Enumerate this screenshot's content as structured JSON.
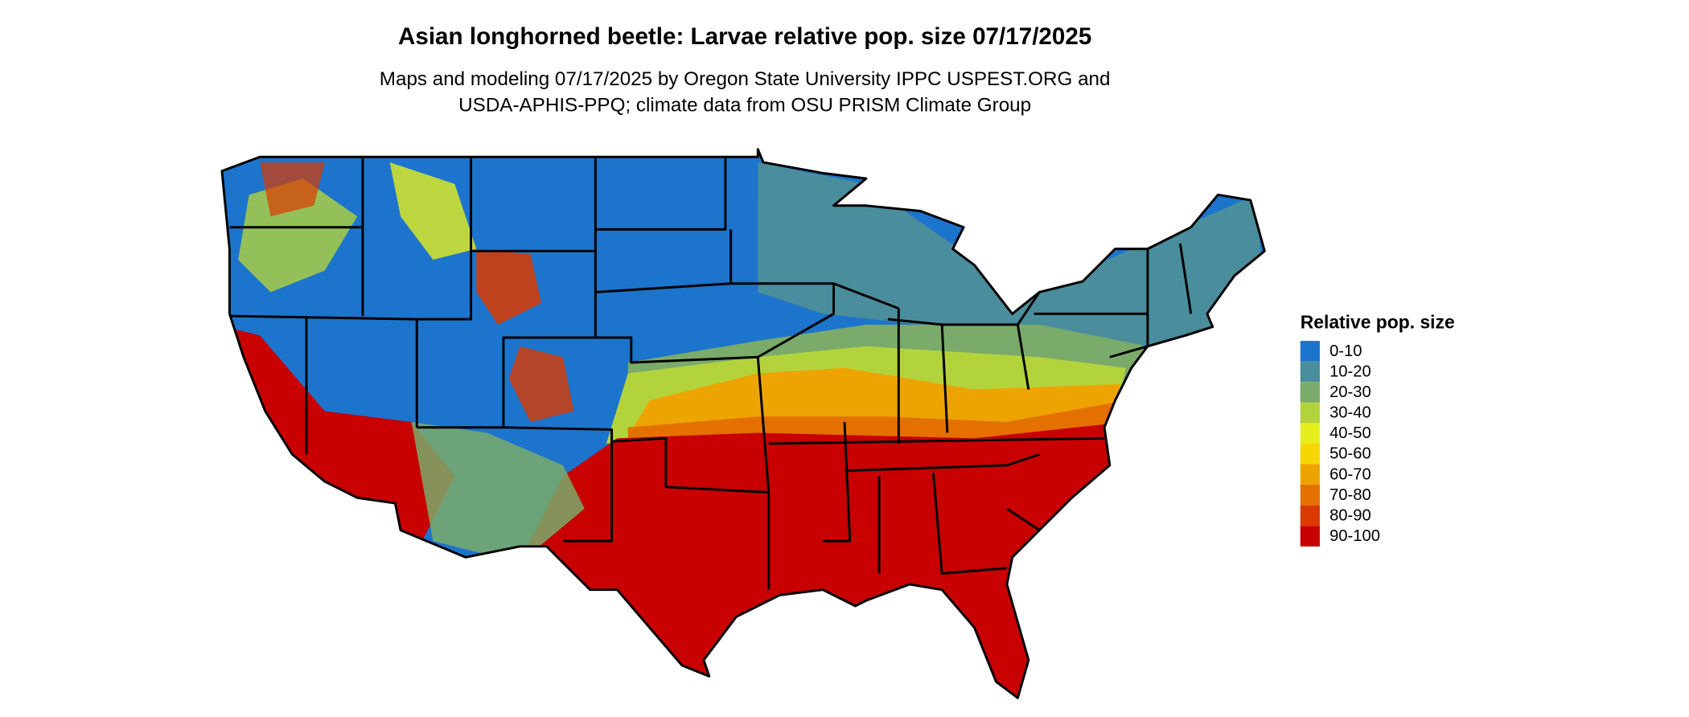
{
  "title": "Asian longhorned beetle: Larvae relative pop. size 07/17/2025",
  "subtitle": [
    "Maps and modeling 07/17/2025 by Oregon State University IPPC USPEST.ORG and",
    "USDA-APHIS-PPQ; climate data from OSU PRISM Climate Group"
  ],
  "legend": {
    "title": "Relative pop. size",
    "items": [
      {
        "label": "0-10",
        "color": "#1c74cc"
      },
      {
        "label": "10-20",
        "color": "#4a8d9c"
      },
      {
        "label": "20-30",
        "color": "#7aab6a"
      },
      {
        "label": "30-40",
        "color": "#b3d33c"
      },
      {
        "label": "40-50",
        "color": "#e6ef1c"
      },
      {
        "label": "50-60",
        "color": "#f6d800"
      },
      {
        "label": "60-70",
        "color": "#eea400"
      },
      {
        "label": "70-80",
        "color": "#e47000"
      },
      {
        "label": "80-90",
        "color": "#dc3a00"
      },
      {
        "label": "90-100",
        "color": "#c80000"
      }
    ]
  }
}
